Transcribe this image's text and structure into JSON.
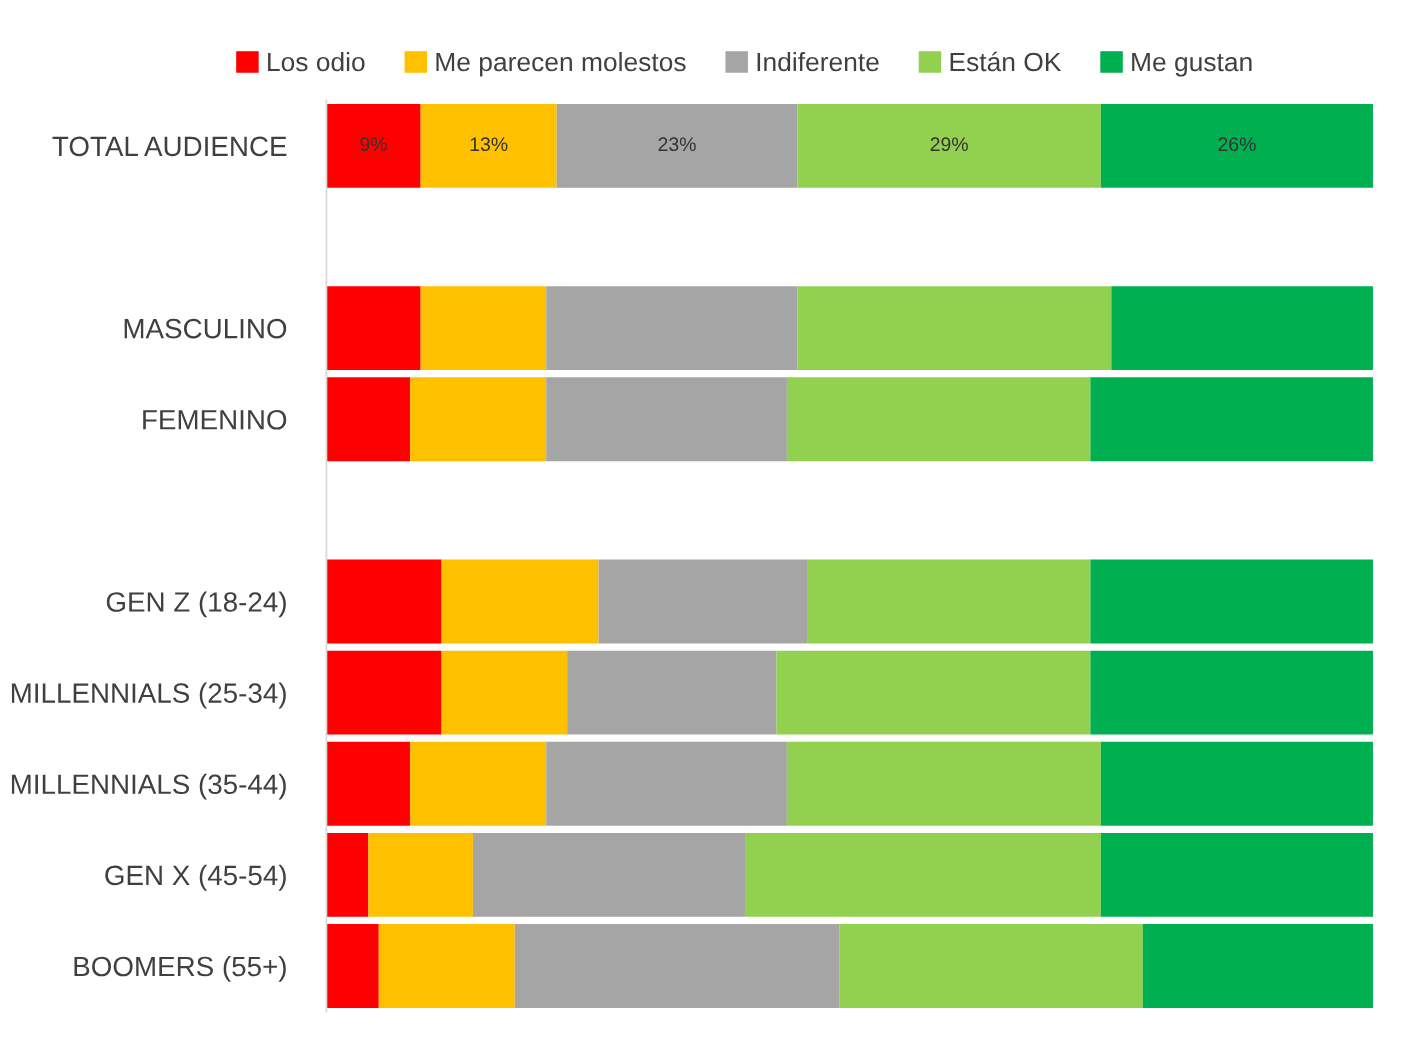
{
  "chart_data": {
    "type": "bar",
    "orientation": "horizontal",
    "stacked": true,
    "legend": "top",
    "grid": false,
    "tick_labels": "y",
    "xlim": [
      0,
      100
    ],
    "categories": [
      "TOTAL AUDIENCE",
      null,
      "MASCULINO",
      "FEMENINO",
      null,
      "GEN Z (18-24)",
      "MILLENNIALS (25-34)",
      "MILLENNIALS (35-44)",
      "GEN X (45-54)",
      "BOOMERS (55+)"
    ],
    "series": [
      {
        "name": "Los odio",
        "color": "#ff0000",
        "values": [
          9,
          null,
          9,
          8,
          null,
          11,
          11,
          8,
          4,
          5
        ],
        "value_labels": [
          "9%",
          null,
          null,
          null,
          null,
          null,
          null,
          null,
          null,
          null
        ]
      },
      {
        "name": "Me parecen molestos",
        "color": "#ffc000",
        "values": [
          13,
          null,
          12,
          13,
          null,
          15,
          12,
          13,
          10,
          13
        ],
        "value_labels": [
          "13%",
          null,
          null,
          null,
          null,
          null,
          null,
          null,
          null,
          null
        ]
      },
      {
        "name": "Indiferente",
        "color": "#a5a5a5",
        "values": [
          23,
          null,
          24,
          23,
          null,
          20,
          20,
          23,
          26,
          31
        ],
        "value_labels": [
          "23%",
          null,
          null,
          null,
          null,
          null,
          null,
          null,
          null,
          null
        ]
      },
      {
        "name": "Están OK",
        "color": "#92d050",
        "values": [
          29,
          null,
          30,
          29,
          null,
          27,
          30,
          30,
          34,
          29
        ],
        "value_labels": [
          "29%",
          null,
          null,
          null,
          null,
          null,
          null,
          null,
          null,
          null
        ]
      },
      {
        "name": "Me gustan",
        "color": "#00b050",
        "values": [
          26,
          null,
          25,
          27,
          null,
          27,
          27,
          26,
          26,
          22
        ],
        "value_labels": [
          "26%",
          null,
          null,
          null,
          null,
          null,
          null,
          null,
          null,
          null
        ]
      }
    ]
  }
}
